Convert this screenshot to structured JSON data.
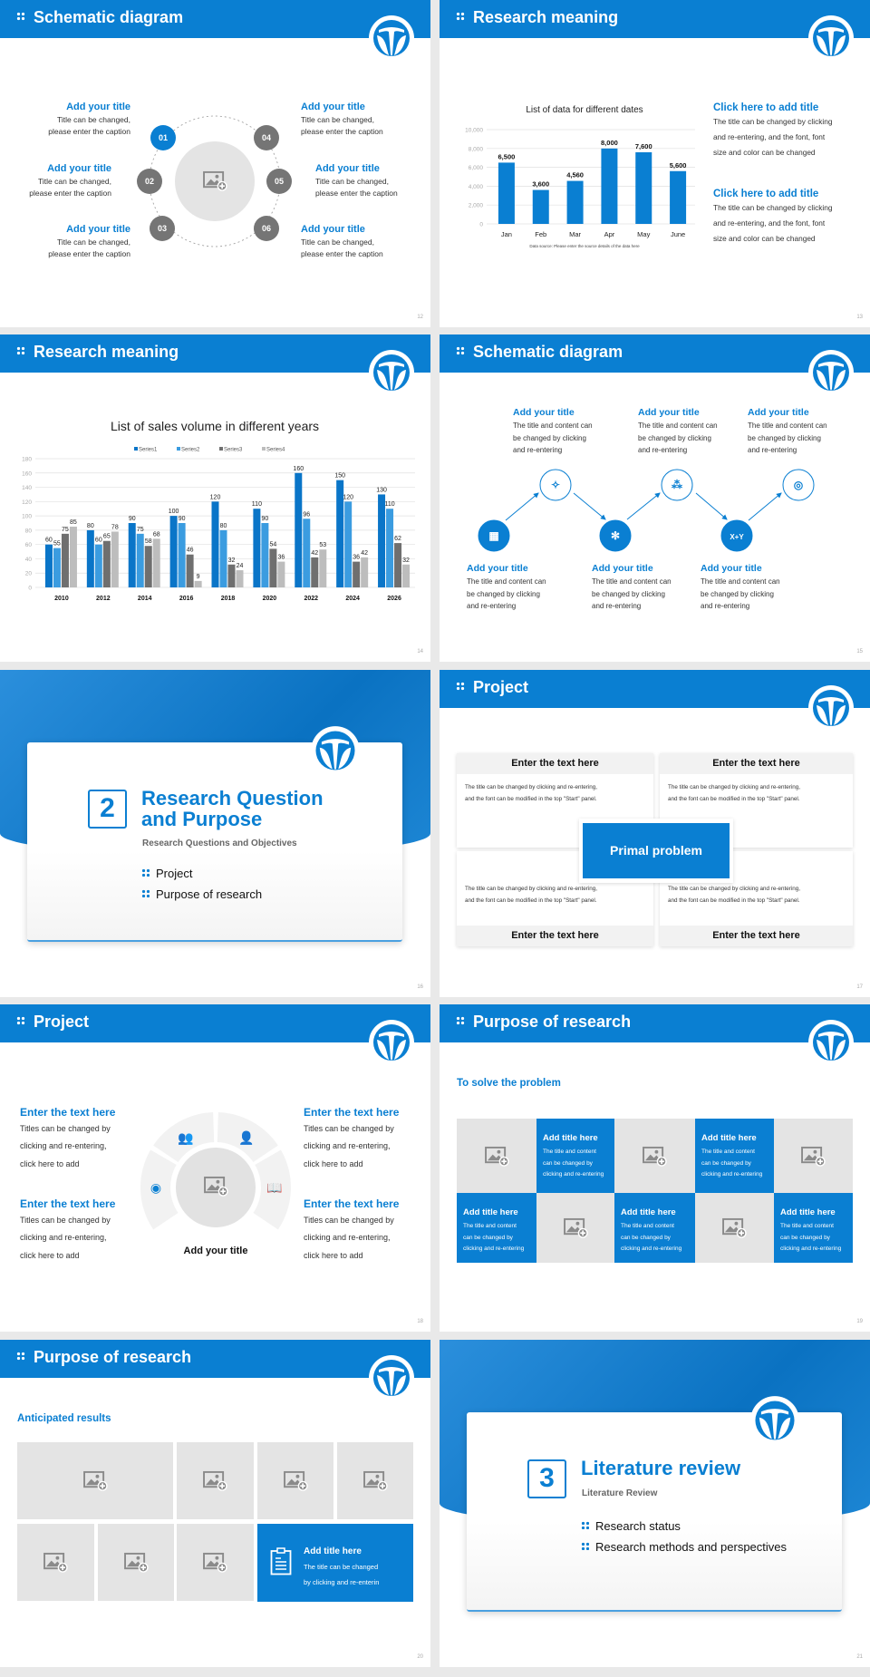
{
  "colors": {
    "brand": "#0a7fd2",
    "gray_node": "#757575",
    "placeholder": "#e4e4e4",
    "series": [
      "#0a75c8",
      "#3b9ce0",
      "#6f6f6f",
      "#bdbdbd"
    ]
  },
  "s12": {
    "page": "12",
    "header": "Schematic diagram",
    "items": [
      {
        "num": "01",
        "title": "Add your title",
        "line1": "Title can be changed,",
        "line2": "please enter the caption"
      },
      {
        "num": "02",
        "title": "Add your title",
        "line1": "Title can be changed,",
        "line2": "please enter the caption"
      },
      {
        "num": "03",
        "title": "Add your title",
        "line1": "Title can be changed,",
        "line2": "please enter the caption"
      },
      {
        "num": "04",
        "title": "Add your title",
        "line1": "Title can be changed,",
        "line2": "please enter the caption"
      },
      {
        "num": "05",
        "title": "Add your title",
        "line1": "Title can be changed,",
        "line2": "please enter the caption"
      },
      {
        "num": "06",
        "title": "Add your title",
        "line1": "Title can be changed,",
        "line2": "please enter the caption"
      }
    ]
  },
  "s13": {
    "page": "13",
    "header": "Research meaning",
    "blocks": [
      {
        "title": "Click here to add title",
        "lines": [
          "The title can be changed by clicking",
          "and re-entering, and the font, font",
          "size and color can be changed"
        ]
      },
      {
        "title": "Click here to add title",
        "lines": [
          "The title can be changed by clicking",
          "and re-entering, and the font, font",
          "size and color can be changed"
        ]
      }
    ]
  },
  "s14": {
    "page": "14",
    "header": "Research meaning"
  },
  "s15": {
    "page": "15",
    "header": "Schematic diagram",
    "items": [
      {
        "title": "Add your title",
        "lines": [
          "The title and content can",
          "be changed by clicking",
          "and re-entering"
        ],
        "icon": "network-icon"
      },
      {
        "title": "Add your title",
        "lines": [
          "The title and content can",
          "be changed by clicking",
          "and re-entering"
        ],
        "icon": "sparkle-icon"
      },
      {
        "title": "Add your title",
        "lines": [
          "The title and content can",
          "be changed by clicking",
          "and re-entering"
        ],
        "icon": "snowflake-icon"
      },
      {
        "title": "Add your title",
        "lines": [
          "The title and content can",
          "be changed by clicking",
          "and re-entering"
        ],
        "icon": "scatter-icon"
      },
      {
        "title": "Add your title",
        "lines": [
          "The title and content can",
          "be changed by clicking",
          "and re-entering"
        ],
        "icon": "x-plus-y-icon"
      },
      {
        "title": "Add your title",
        "lines": [
          "The title and content can",
          "be changed by clicking",
          "and re-entering"
        ],
        "icon": "target-icon"
      }
    ]
  },
  "s16": {
    "page": "16",
    "number": "2",
    "title1": "Research Question",
    "title2": "and Purpose",
    "subtitle": "Research Questions and Objectives",
    "items": [
      "Project",
      "Purpose of research"
    ]
  },
  "s17": {
    "page": "17",
    "header": "Project",
    "center": "Primal problem",
    "panels": [
      {
        "heading": "Enter the text here",
        "line1": "The title can be changed by clicking and re-entering,",
        "line2": "and the font can be modified in the top \"Start\" panel."
      },
      {
        "heading": "Enter the text here",
        "line1": "The title can be changed by clicking and re-entering,",
        "line2": "and the font can be modified in the top \"Start\" panel."
      },
      {
        "heading": "Enter the text here",
        "line1": "The title can be changed by clicking and re-entering,",
        "line2": "and the font can be modified in the top \"Start\" panel."
      },
      {
        "heading": "Enter the text here",
        "line1": "The title can be changed by clicking and re-entering,",
        "line2": "and the font can be modified in the top \"Start\" panel."
      }
    ]
  },
  "s18": {
    "page": "18",
    "header": "Project",
    "center_title": "Add your title",
    "blocks": [
      {
        "title": "Enter the text here",
        "lines": [
          "Titles can be changed by",
          "clicking and re-entering,",
          "click here to add"
        ]
      },
      {
        "title": "Enter the text here",
        "lines": [
          "Titles can be changed by",
          "clicking and re-entering,",
          "click here to add"
        ]
      },
      {
        "title": "Enter the text here",
        "lines": [
          "Titles can be changed by",
          "clicking and re-entering,",
          "click here to add"
        ]
      },
      {
        "title": "Enter the text here",
        "lines": [
          "Titles can be changed by",
          "clicking and re-entering,",
          "click here to add"
        ]
      }
    ],
    "icons": [
      "user-cycle-icon",
      "team-icon",
      "user-edit-icon",
      "reader-icon"
    ]
  },
  "s19": {
    "page": "19",
    "header": "Purpose of research",
    "subtitle": "To solve the problem",
    "cards": [
      {
        "title": "Add title here",
        "lines": [
          "The title and content",
          "can be changed by",
          "clicking and re-entering"
        ]
      },
      {
        "title": "Add title here",
        "lines": [
          "The title and content",
          "can be changed by",
          "clicking and re-entering"
        ]
      },
      {
        "title": "Add title here",
        "lines": [
          "The title and content",
          "can be changed by",
          "clicking and re-entering"
        ]
      },
      {
        "title": "Add title here",
        "lines": [
          "The title and content",
          "can be changed by",
          "clicking and re-entering"
        ]
      },
      {
        "title": "Add title here",
        "lines": [
          "The title and content",
          "can be changed by",
          "clicking and re-entering"
        ]
      }
    ]
  },
  "s20": {
    "page": "20",
    "header": "Purpose of research",
    "subtitle": "Anticipated results",
    "card": {
      "title": "Add title here",
      "lines": [
        "The title can be changed",
        "by clicking and re-enterin"
      ]
    }
  },
  "s21": {
    "page": "21",
    "number": "3",
    "title1": "Literature review",
    "subtitle": "Literature Review",
    "items": [
      "Research status",
      "Research methods and perspectives"
    ]
  },
  "chart_data": [
    {
      "type": "bar",
      "title": "List of data for different dates",
      "categories": [
        "Jan",
        "Feb",
        "Mar",
        "Apr",
        "May",
        "June"
      ],
      "values": [
        6500,
        3600,
        4560,
        8000,
        7600,
        5600
      ],
      "value_labels": [
        "6,500",
        "3,600",
        "4,560",
        "8,000",
        "7,600",
        "5,600"
      ],
      "yticks": [
        "0",
        "2,000",
        "4,000",
        "6,000",
        "8,000",
        "10,000"
      ],
      "ylim": [
        0,
        10000
      ],
      "grid": true,
      "source": "Data source: Please enter the source details of the data here"
    },
    {
      "type": "bar",
      "title": "List of sales volume in different years",
      "categories": [
        "2010",
        "2012",
        "2014",
        "2016",
        "2018",
        "2020",
        "2022",
        "2024",
        "2026"
      ],
      "series": [
        {
          "name": "Series1",
          "values": [
            60,
            80,
            90,
            100,
            120,
            110,
            160,
            150,
            130
          ]
        },
        {
          "name": "Series2",
          "values": [
            55,
            60,
            75,
            90,
            80,
            90,
            96,
            120,
            110
          ]
        },
        {
          "name": "Series3",
          "values": [
            75,
            65,
            58,
            46,
            32,
            54,
            42,
            36,
            62
          ]
        },
        {
          "name": "Series4",
          "values": [
            85,
            78,
            68,
            9,
            24,
            36,
            53,
            42,
            32
          ]
        }
      ],
      "yticks": [
        "0",
        "20",
        "40",
        "60",
        "80",
        "100",
        "120",
        "140",
        "160",
        "180"
      ],
      "ylim": [
        0,
        180
      ],
      "grid": true,
      "legend": "top"
    }
  ]
}
